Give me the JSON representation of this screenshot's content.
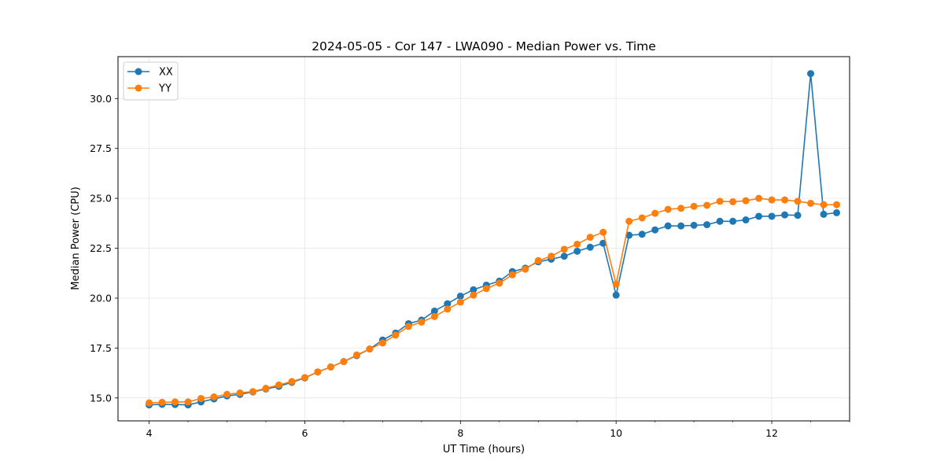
{
  "chart_data": {
    "type": "line",
    "title": "2024-05-05 - Cor 147 - LWA090 - Median Power vs. Time",
    "xlabel": "UT Time (hours)",
    "ylabel": "Median Power (CPU)",
    "xlim": [
      3.6,
      13.0
    ],
    "ylim": [
      13.85,
      32.1
    ],
    "xticks": [
      4,
      6,
      8,
      10,
      12
    ],
    "xtick_labels": [
      "4",
      "6",
      "8",
      "10",
      "12"
    ],
    "yticks": [
      15.0,
      17.5,
      20.0,
      22.5,
      25.0,
      27.5,
      30.0
    ],
    "ytick_labels": [
      "15.0",
      "17.5",
      "20.0",
      "22.5",
      "25.0",
      "27.5",
      "30.0"
    ],
    "grid": true,
    "legend_position": "top-left",
    "x": [
      4.0,
      4.1667,
      4.3333,
      4.5,
      4.6667,
      4.8333,
      5.0,
      5.1667,
      5.3333,
      5.5,
      5.6667,
      5.8333,
      6.0,
      6.1667,
      6.3333,
      6.5,
      6.6667,
      6.8333,
      7.0,
      7.1667,
      7.3333,
      7.5,
      7.6667,
      7.8333,
      8.0,
      8.1667,
      8.3333,
      8.5,
      8.6667,
      8.8333,
      9.0,
      9.1667,
      9.3333,
      9.5,
      9.6667,
      9.8333,
      10.0,
      10.1667,
      10.3333,
      10.5,
      10.6667,
      10.8333,
      11.0,
      11.1667,
      11.3333,
      11.5,
      11.6667,
      11.8333,
      12.0,
      12.1667,
      12.3333,
      12.5,
      12.6667,
      12.8333
    ],
    "series": [
      {
        "name": "XX",
        "color": "#1f77b4",
        "values": [
          14.65,
          14.68,
          14.67,
          14.65,
          14.8,
          14.95,
          15.1,
          15.18,
          15.3,
          15.45,
          15.58,
          15.78,
          16.0,
          16.3,
          16.55,
          16.82,
          17.12,
          17.45,
          17.9,
          18.25,
          18.72,
          18.9,
          19.35,
          19.72,
          20.1,
          20.42,
          20.65,
          20.85,
          21.33,
          21.5,
          21.82,
          21.95,
          22.1,
          22.35,
          22.55,
          22.75,
          20.15,
          23.15,
          23.2,
          23.42,
          23.62,
          23.62,
          23.65,
          23.68,
          23.85,
          23.85,
          23.92,
          24.1,
          24.1,
          24.17,
          24.15,
          31.25,
          24.2,
          24.28
        ]
      },
      {
        "name": "YY",
        "color": "#ff7f0e",
        "values": [
          14.75,
          14.78,
          14.8,
          14.8,
          14.97,
          15.05,
          15.18,
          15.25,
          15.32,
          15.48,
          15.65,
          15.82,
          16.02,
          16.3,
          16.55,
          16.82,
          17.15,
          17.45,
          17.75,
          18.15,
          18.58,
          18.8,
          19.08,
          19.45,
          19.8,
          20.15,
          20.48,
          20.75,
          21.17,
          21.45,
          21.88,
          22.1,
          22.45,
          22.7,
          23.05,
          23.3,
          20.7,
          23.85,
          24.02,
          24.25,
          24.45,
          24.5,
          24.6,
          24.65,
          24.85,
          24.83,
          24.88,
          25.0,
          24.92,
          24.92,
          24.85,
          24.75,
          24.68,
          24.68
        ]
      }
    ]
  }
}
